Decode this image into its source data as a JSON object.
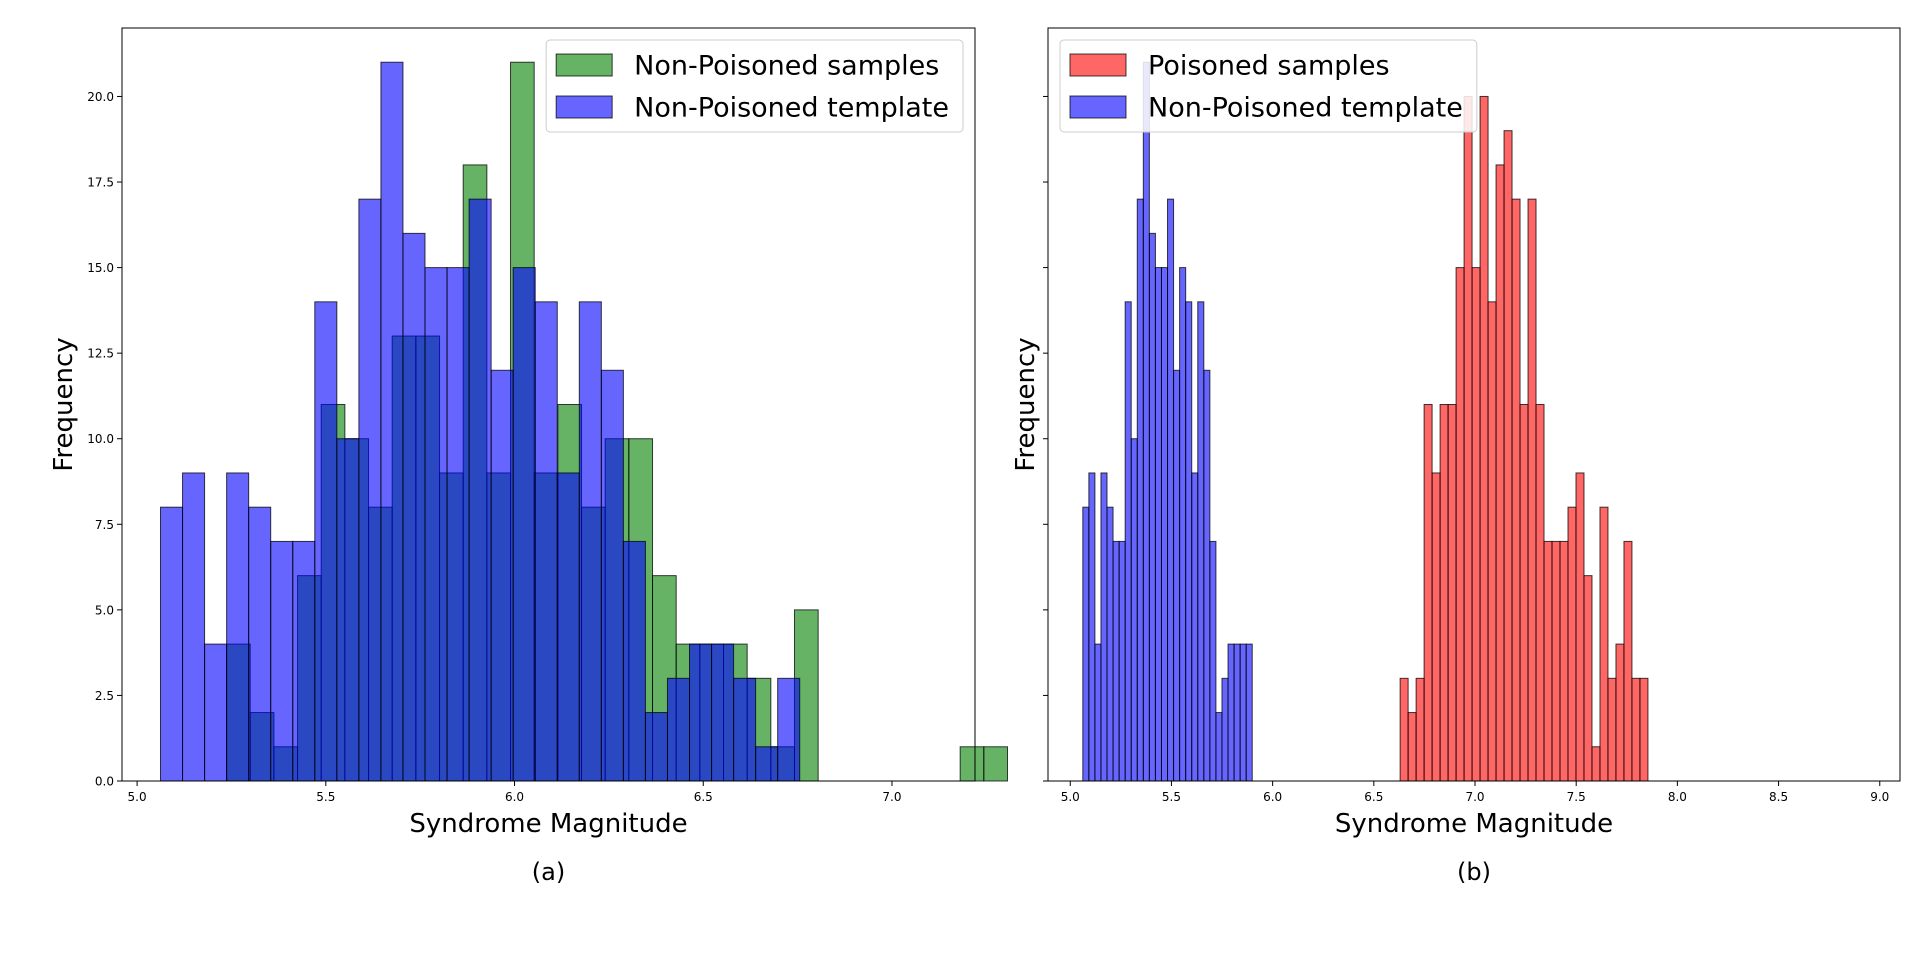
{
  "chart_data": [
    {
      "type": "bar",
      "subtitle": "(a)",
      "xlabel": "Syndrome Magnitude",
      "ylabel": "Frequency",
      "xlim": [
        4.96,
        7.22
      ],
      "ylim": [
        0,
        22
      ],
      "xticks": [
        5.0,
        5.5,
        6.0,
        6.5,
        7.0
      ],
      "xtick_labels": [
        "5.0",
        "5.5",
        "6.0",
        "6.5",
        "7.0"
      ],
      "yticks": [
        0,
        2.5,
        5,
        7.5,
        10,
        12.5,
        15,
        17.5,
        20
      ],
      "ytick_labels": [
        "0.0",
        "2.5",
        "5.0",
        "7.5",
        "10.0",
        "12.5",
        "15.0",
        "17.5",
        "20.0"
      ],
      "legend_position": "top-right",
      "series": [
        {
          "name": "Non-Poisoned samples",
          "color": "#008000",
          "bin_start": 5.237,
          "bin_width": 0.0627,
          "values": [
            4,
            2,
            1,
            6,
            11,
            10,
            8,
            13,
            13,
            9,
            18,
            9,
            21,
            9,
            11,
            8,
            10,
            10,
            6,
            4,
            4,
            4,
            3,
            1,
            5,
            0,
            0,
            0,
            0,
            0,
            0,
            1,
            1
          ]
        },
        {
          "name": "Non-Poisoned template",
          "color": "#0000ff",
          "bin_start": 5.062,
          "bin_width": 0.0584,
          "values": [
            8,
            9,
            4,
            9,
            8,
            7,
            7,
            14,
            10,
            17,
            21,
            16,
            15,
            15,
            17,
            12,
            15,
            14,
            9,
            14,
            12,
            7,
            2,
            3,
            4,
            4,
            3,
            1,
            3
          ]
        }
      ]
    },
    {
      "type": "bar",
      "subtitle": "(b)",
      "xlabel": "Syndrome Magnitude",
      "ylabel": "Frequency",
      "xlim": [
        4.89,
        9.1
      ],
      "ylim": [
        0,
        22
      ],
      "xticks": [
        5.0,
        5.5,
        6.0,
        6.5,
        7.0,
        7.5,
        8.0,
        8.5,
        9.0
      ],
      "xtick_labels": [
        "5.0",
        "5.5",
        "6.0",
        "6.5",
        "7.0",
        "7.5",
        "8.0",
        "8.5",
        "9.0"
      ],
      "yticks": [
        0,
        2.5,
        5,
        7.5,
        10,
        12.5,
        15,
        17.5,
        20
      ],
      "ytick_labels": [
        "",
        "",
        "",
        "",
        "",
        "",
        "",
        "",
        ""
      ],
      "legend_position": "top-left",
      "series": [
        {
          "name": "Poisoned samples",
          "color": "#ff0000",
          "bin_start": 6.63,
          "bin_width": 0.0395,
          "values": [
            3,
            2,
            3,
            11,
            9,
            11,
            11,
            15,
            20,
            15,
            20,
            14,
            18,
            19,
            17,
            11,
            17,
            11,
            7,
            7,
            7,
            8,
            9,
            6,
            1,
            8,
            3,
            4,
            7,
            3,
            3
          ]
        },
        {
          "name": "Non-Poisoned template",
          "color": "#0000ff",
          "bin_start": 5.062,
          "bin_width": 0.0299,
          "values": [
            8,
            9,
            4,
            9,
            8,
            7,
            7,
            14,
            10,
            17,
            21,
            16,
            15,
            15,
            17,
            12,
            15,
            14,
            9,
            14,
            12,
            7,
            2,
            3,
            4,
            4,
            4,
            4
          ]
        }
      ]
    }
  ]
}
